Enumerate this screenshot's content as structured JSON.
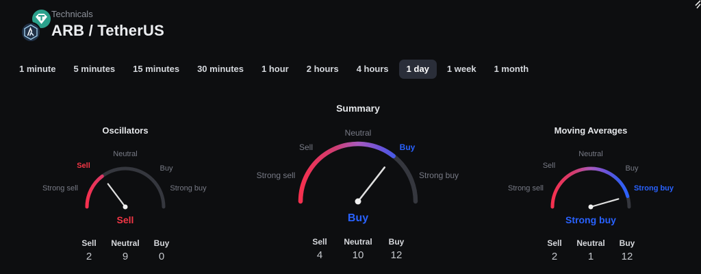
{
  "header": {
    "subtitle": "Technicals",
    "title": "ARB / TetherUS",
    "base_icon": "arbitrum-logo",
    "quote_icon": "tether-logo"
  },
  "timeframes": [
    {
      "label": "1 minute",
      "selected": false
    },
    {
      "label": "5 minutes",
      "selected": false
    },
    {
      "label": "15 minutes",
      "selected": false
    },
    {
      "label": "30 minutes",
      "selected": false
    },
    {
      "label": "1 hour",
      "selected": false
    },
    {
      "label": "2 hours",
      "selected": false
    },
    {
      "label": "4 hours",
      "selected": false
    },
    {
      "label": "1 day",
      "selected": true
    },
    {
      "label": "1 week",
      "selected": false
    },
    {
      "label": "1 month",
      "selected": false
    }
  ],
  "gauges": [
    {
      "title": "Oscillators",
      "value_angle_deg": 127,
      "scale": [
        {
          "label": "Strong sell"
        },
        {
          "label": "Sell",
          "color": "#f23645"
        },
        {
          "label": "Neutral"
        },
        {
          "label": "Buy"
        },
        {
          "label": "Strong buy"
        }
      ],
      "status": "Sell",
      "status_color": "#f23645",
      "counts": {
        "columns": [
          "Sell",
          "Neutral",
          "Buy"
        ],
        "values": [
          2,
          9,
          0
        ]
      }
    },
    {
      "title": "Summary",
      "value_angle_deg": 52,
      "scale": [
        {
          "label": "Strong sell"
        },
        {
          "label": "Sell"
        },
        {
          "label": "Neutral"
        },
        {
          "label": "Buy",
          "color": "#2962ff"
        },
        {
          "label": "Strong buy"
        }
      ],
      "status": "Buy",
      "status_color": "#2962ff",
      "counts": {
        "columns": [
          "Sell",
          "Neutral",
          "Buy"
        ],
        "values": [
          4,
          10,
          12
        ]
      }
    },
    {
      "title": "Moving Averages",
      "value_angle_deg": 16,
      "scale": [
        {
          "label": "Strong sell"
        },
        {
          "label": "Sell"
        },
        {
          "label": "Neutral"
        },
        {
          "label": "Buy"
        },
        {
          "label": "Strong buy",
          "color": "#2962ff"
        }
      ],
      "status": "Strong buy",
      "status_color": "#2962ff",
      "counts": {
        "columns": [
          "Sell",
          "Neutral",
          "Buy"
        ],
        "values": [
          2,
          1,
          12
        ]
      }
    }
  ],
  "chart_data": [
    {
      "type": "gauge",
      "title": "Oscillators",
      "reading": "Sell",
      "range": [
        "Strong sell",
        "Sell",
        "Neutral",
        "Buy",
        "Strong buy"
      ],
      "counts": {
        "Sell": 2,
        "Neutral": 9,
        "Buy": 0
      }
    },
    {
      "type": "gauge",
      "title": "Summary",
      "reading": "Buy",
      "range": [
        "Strong sell",
        "Sell",
        "Neutral",
        "Buy",
        "Strong buy"
      ],
      "counts": {
        "Sell": 4,
        "Neutral": 10,
        "Buy": 12
      }
    },
    {
      "type": "gauge",
      "title": "Moving Averages",
      "reading": "Strong buy",
      "range": [
        "Strong sell",
        "Sell",
        "Neutral",
        "Buy",
        "Strong buy"
      ],
      "counts": {
        "Sell": 2,
        "Neutral": 1,
        "Buy": 12
      }
    }
  ],
  "colors": {
    "arc_gradient": [
      "#f5304e",
      "#cf3d72",
      "#a85abd",
      "#7053d8",
      "#3d5be8",
      "#2962ff"
    ],
    "arc_bg": "#35373e",
    "needle": "#e0e0e0",
    "needle_dot": "#f0f0f0",
    "accent_sell": "#f23645",
    "accent_buy": "#2962ff",
    "selected_tab_bg": "#2a2e39",
    "tether_teal": "#2ba18c",
    "arbitrum_navy": "#213147"
  }
}
